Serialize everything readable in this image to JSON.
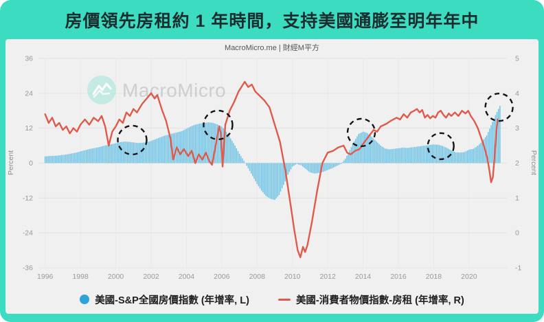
{
  "header": {
    "title": "房價領先房租約 1 年時間，支持美國通膨至明年年中"
  },
  "credit": "MacroMicro.me | 財經M平方",
  "watermark": {
    "text": "MacroMicro",
    "logo": "macromicro-wave-logo"
  },
  "colors": {
    "frame_teal": "#3CDCC1",
    "panel_bg": "#F0F0F0",
    "bar_blue": "#6CC2E6",
    "legend_dot_blue": "#2FA3D9",
    "line_red": "#E05A4C",
    "grid_h": "#E2E2E2",
    "grid_v": "#E9E9E9",
    "tick_text": "#999999",
    "annotation": "#141414"
  },
  "legend": [
    {
      "marker": "circle",
      "label": "美國-S&P全國房價指數 (年增率, L)"
    },
    {
      "marker": "line",
      "label": "美國-消費者物價指數-房租 (年增率, R)"
    }
  ],
  "chart_data": {
    "type": "combo",
    "title": "房價領先房租約 1 年時間，支持美國通膨至明年年中",
    "x_axis": {
      "range": [
        1995.7,
        2022.3
      ],
      "ticks": [
        1996,
        1998,
        2000,
        2002,
        2004,
        2006,
        2008,
        2010,
        2012,
        2014,
        2016,
        2018,
        2020
      ]
    },
    "left_axis": {
      "label": "Percent",
      "range": [
        -36,
        36
      ],
      "ticks": [
        36,
        24,
        12,
        0,
        -12,
        -24,
        -36
      ]
    },
    "right_axis": {
      "label": "Percent",
      "range": [
        -1,
        5
      ],
      "ticks": [
        5,
        4,
        3,
        2,
        1,
        0,
        -1
      ]
    },
    "grid": true,
    "legend_position": "bottom",
    "series": [
      {
        "name": "美國-S&P全國房價指數 (年增率, L)",
        "type": "bar",
        "axis": "left",
        "color": "#6CC2E6",
        "x_start": 1996,
        "x_step": 0.25,
        "values": [
          2.3,
          2.4,
          2.5,
          2.6,
          2.8,
          3.0,
          3.3,
          3.6,
          4.0,
          4.4,
          4.8,
          5.1,
          5.4,
          5.8,
          6.2,
          6.5,
          6.8,
          7.2,
          7.4,
          7.3,
          7.1,
          6.9,
          7.0,
          7.2,
          7.6,
          8.2,
          8.8,
          9.4,
          9.8,
          10.2,
          10.6,
          11.0,
          11.8,
          12.6,
          13.2,
          13.6,
          13.8,
          14.0,
          13.8,
          13.3,
          12.5,
          10.8,
          8.5,
          6.0,
          3.2,
          0.8,
          -1.8,
          -4.5,
          -7.2,
          -9.5,
          -11.3,
          -12.3,
          -12.7,
          -11.0,
          -7.5,
          -4.0,
          -1.2,
          -0.3,
          -0.8,
          -2.0,
          -3.2,
          -3.6,
          -3.4,
          -3.0,
          -2.4,
          -1.8,
          -1.0,
          -0.3,
          1.5,
          4.5,
          7.5,
          10.0,
          10.8,
          10.3,
          9.0,
          7.5,
          6.0,
          5.0,
          4.7,
          4.9,
          5.1,
          5.3,
          5.2,
          5.4,
          5.6,
          5.8,
          6.0,
          6.2,
          6.4,
          6.3,
          5.9,
          5.2,
          4.3,
          3.7,
          3.6,
          3.8,
          4.6,
          4.9,
          6.0,
          7.5,
          9.5,
          13.0,
          16.5,
          19.7
        ]
      },
      {
        "name": "美國-消費者物價指數-房租 (年增率, R)",
        "type": "line",
        "axis": "right",
        "color": "#E05A4C",
        "points": [
          [
            1996.0,
            3.4
          ],
          [
            1996.2,
            3.15
          ],
          [
            1996.4,
            3.3
          ],
          [
            1996.6,
            3.05
          ],
          [
            1996.8,
            3.15
          ],
          [
            1997.0,
            2.95
          ],
          [
            1997.2,
            3.05
          ],
          [
            1997.4,
            2.85
          ],
          [
            1997.6,
            3.0
          ],
          [
            1997.8,
            2.9
          ],
          [
            1998.0,
            3.1
          ],
          [
            1998.25,
            3.25
          ],
          [
            1998.5,
            3.1
          ],
          [
            1998.75,
            3.3
          ],
          [
            1999.0,
            3.2
          ],
          [
            1999.2,
            3.35
          ],
          [
            1999.4,
            3.05
          ],
          [
            1999.6,
            2.5
          ],
          [
            1999.8,
            2.9
          ],
          [
            2000.0,
            3.05
          ],
          [
            2000.2,
            3.25
          ],
          [
            2000.4,
            3.15
          ],
          [
            2000.6,
            3.45
          ],
          [
            2000.8,
            3.35
          ],
          [
            2001.0,
            3.55
          ],
          [
            2001.2,
            3.45
          ],
          [
            2001.5,
            3.7
          ],
          [
            2001.75,
            3.85
          ],
          [
            2002.0,
            4.0
          ],
          [
            2002.2,
            3.85
          ],
          [
            2002.35,
            3.95
          ],
          [
            2002.6,
            3.55
          ],
          [
            2002.85,
            3.2
          ],
          [
            2003.1,
            2.7
          ],
          [
            2003.25,
            2.1
          ],
          [
            2003.45,
            2.45
          ],
          [
            2003.65,
            2.25
          ],
          [
            2003.85,
            2.4
          ],
          [
            2004.1,
            2.2
          ],
          [
            2004.3,
            2.35
          ],
          [
            2004.5,
            2.0
          ],
          [
            2004.7,
            2.25
          ],
          [
            2004.9,
            2.1
          ],
          [
            2005.1,
            2.3
          ],
          [
            2005.3,
            2.05
          ],
          [
            2005.45,
            1.95
          ],
          [
            2005.65,
            2.5
          ],
          [
            2005.85,
            3.05
          ],
          [
            2005.95,
            2.85
          ],
          [
            2006.05,
            1.9
          ],
          [
            2006.2,
            3.1
          ],
          [
            2006.45,
            3.5
          ],
          [
            2006.7,
            3.75
          ],
          [
            2006.95,
            4.05
          ],
          [
            2007.3,
            4.33
          ],
          [
            2007.5,
            4.18
          ],
          [
            2007.7,
            4.25
          ],
          [
            2007.9,
            4.05
          ],
          [
            2008.1,
            3.95
          ],
          [
            2008.4,
            3.8
          ],
          [
            2008.7,
            3.6
          ],
          [
            2009.0,
            3.1
          ],
          [
            2009.3,
            2.6
          ],
          [
            2009.6,
            1.8
          ],
          [
            2009.9,
            0.8
          ],
          [
            2010.1,
            0.1
          ],
          [
            2010.3,
            -0.5
          ],
          [
            2010.45,
            -0.7
          ],
          [
            2010.6,
            -0.4
          ],
          [
            2010.72,
            -0.55
          ],
          [
            2010.85,
            -0.35
          ],
          [
            2011.1,
            0.3
          ],
          [
            2011.4,
            1.2
          ],
          [
            2011.7,
            2.0
          ],
          [
            2012.0,
            2.3
          ],
          [
            2012.3,
            2.35
          ],
          [
            2012.6,
            2.45
          ],
          [
            2012.9,
            2.5
          ],
          [
            2013.1,
            2.3
          ],
          [
            2013.3,
            2.25
          ],
          [
            2013.55,
            2.35
          ],
          [
            2013.8,
            2.4
          ],
          [
            2014.0,
            2.55
          ],
          [
            2014.3,
            2.75
          ],
          [
            2014.6,
            2.95
          ],
          [
            2014.8,
            2.9
          ],
          [
            2015.0,
            3.05
          ],
          [
            2015.3,
            3.12
          ],
          [
            2015.6,
            3.22
          ],
          [
            2015.9,
            3.3
          ],
          [
            2016.1,
            3.25
          ],
          [
            2016.3,
            3.4
          ],
          [
            2016.5,
            3.3
          ],
          [
            2016.7,
            3.45
          ],
          [
            2016.9,
            3.5
          ],
          [
            2017.05,
            3.55
          ],
          [
            2017.2,
            3.45
          ],
          [
            2017.35,
            3.52
          ],
          [
            2017.5,
            3.3
          ],
          [
            2017.65,
            3.38
          ],
          [
            2017.8,
            3.28
          ],
          [
            2017.95,
            3.35
          ],
          [
            2018.1,
            3.3
          ],
          [
            2018.25,
            3.45
          ],
          [
            2018.4,
            3.5
          ],
          [
            2018.55,
            3.38
          ],
          [
            2018.7,
            3.3
          ],
          [
            2018.85,
            3.42
          ],
          [
            2019.0,
            3.35
          ],
          [
            2019.2,
            3.45
          ],
          [
            2019.4,
            3.35
          ],
          [
            2019.6,
            3.5
          ],
          [
            2019.8,
            3.42
          ],
          [
            2019.95,
            3.5
          ],
          [
            2020.1,
            3.35
          ],
          [
            2020.3,
            3.2
          ],
          [
            2020.5,
            3.0
          ],
          [
            2020.7,
            2.7
          ],
          [
            2020.9,
            2.4
          ],
          [
            2021.05,
            2.1
          ],
          [
            2021.15,
            1.8
          ],
          [
            2021.25,
            1.45
          ],
          [
            2021.35,
            1.6
          ],
          [
            2021.45,
            2.2
          ],
          [
            2021.55,
            2.9
          ],
          [
            2021.62,
            3.25
          ]
        ]
      }
    ],
    "annotations": [
      {
        "shape": "dashed-circle",
        "x": 2000.93,
        "y_left": 7.9,
        "r": 21
      },
      {
        "shape": "dashed-circle",
        "x": 2005.79,
        "y_left": 13.1,
        "r": 21
      },
      {
        "shape": "dashed-circle",
        "x": 2013.9,
        "y_left": 10.5,
        "r": 20
      },
      {
        "shape": "dashed-circle",
        "x": 2018.4,
        "y_left": 5.8,
        "r": 19
      },
      {
        "shape": "dashed-circle",
        "x": 2021.7,
        "y_left": 19.2,
        "r": 20
      }
    ]
  }
}
